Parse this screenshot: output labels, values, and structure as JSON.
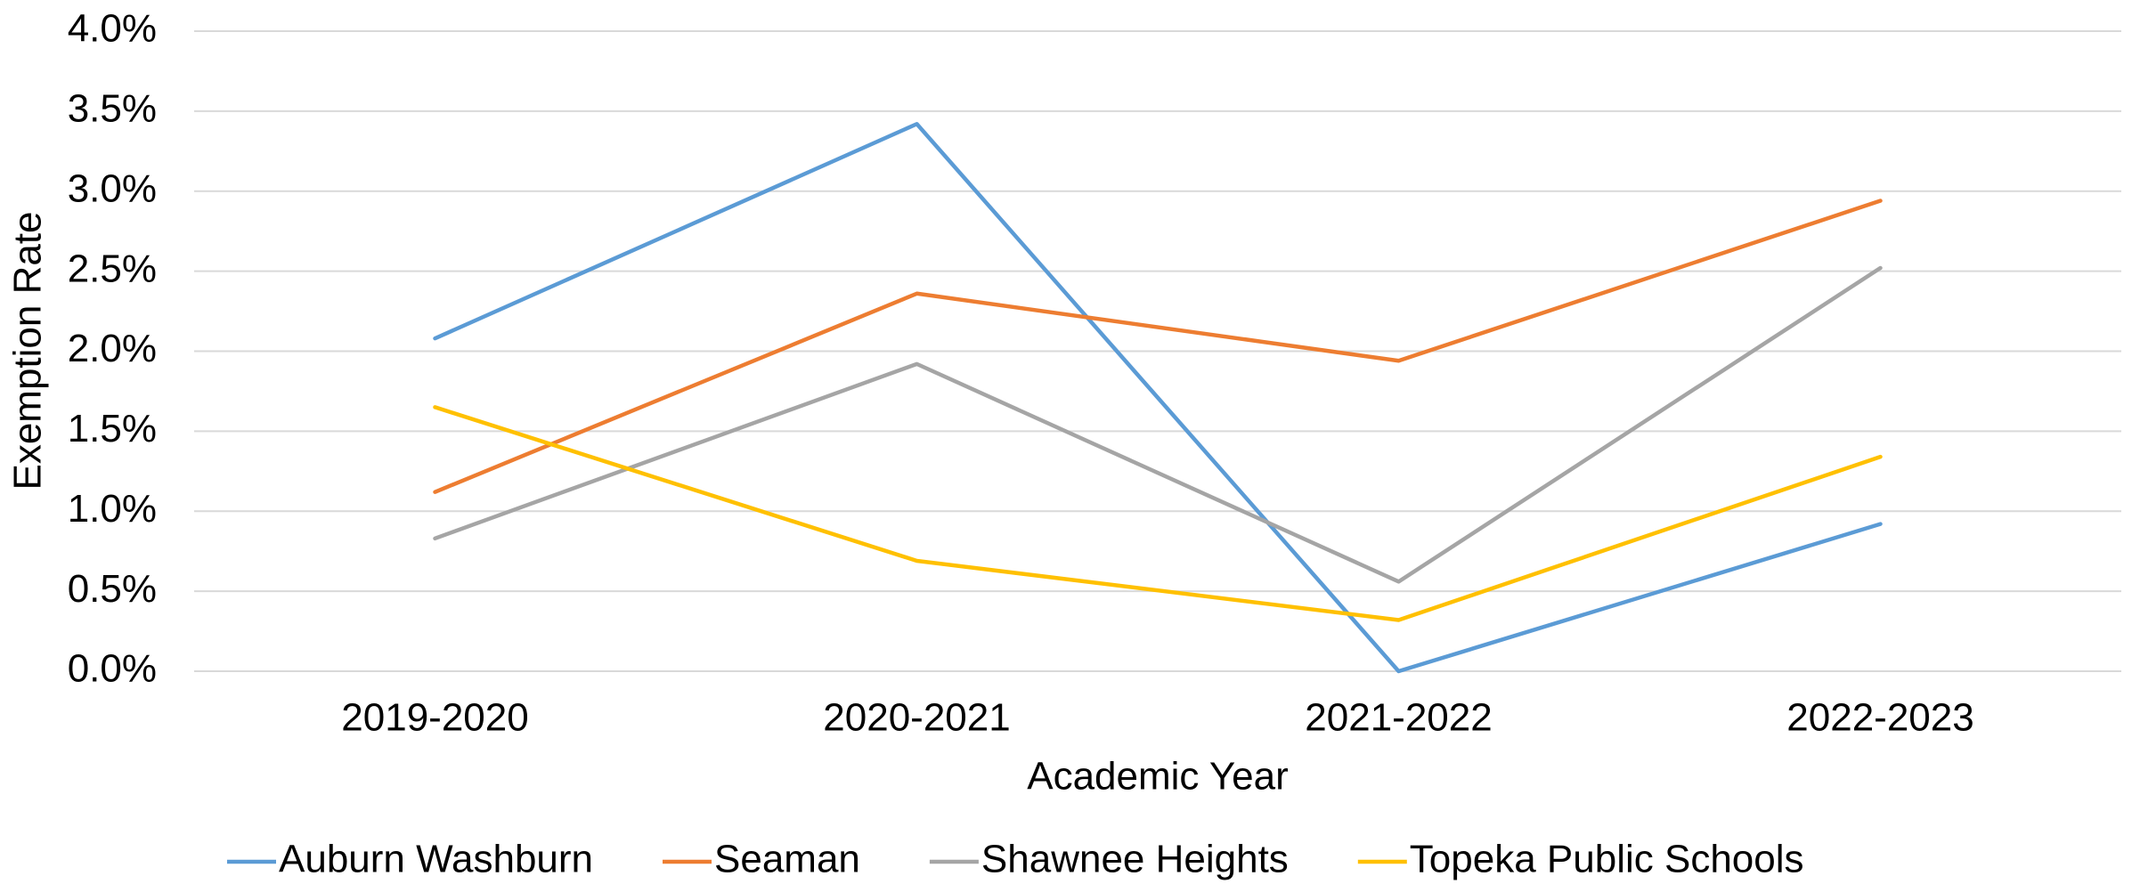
{
  "chart_data": {
    "type": "line",
    "x_label": "Academic Year",
    "y_label": "Exemption Rate",
    "categories": [
      "2019-2020",
      "2020-2021",
      "2021-2022",
      "2022-2023"
    ],
    "series": [
      {
        "name": "Auburn Washburn",
        "color": "#5b9bd5",
        "values": [
          2.08,
          3.42,
          0.0,
          0.92
        ]
      },
      {
        "name": "Seaman",
        "color": "#ed7d31",
        "values": [
          1.12,
          2.36,
          1.94,
          2.94
        ]
      },
      {
        "name": "Shawnee Heights",
        "color": "#a5a5a5",
        "values": [
          0.83,
          1.92,
          0.56,
          2.52
        ]
      },
      {
        "name": "Topeka Public Schools",
        "color": "#ffc000",
        "values": [
          1.65,
          0.69,
          0.32,
          1.34
        ]
      }
    ],
    "ylim": [
      0,
      4
    ],
    "yticks": [
      {
        "value": 0,
        "label": "0.0%"
      },
      {
        "value": 0.5,
        "label": "0.5%"
      },
      {
        "value": 1,
        "label": "1.0%"
      },
      {
        "value": 1.5,
        "label": "1.5%"
      },
      {
        "value": 2,
        "label": "2.0%"
      },
      {
        "value": 2.5,
        "label": "2.5%"
      },
      {
        "value": 3,
        "label": "3.0%"
      },
      {
        "value": 3.5,
        "label": "3.5%"
      },
      {
        "value": 4,
        "label": "4.0%"
      }
    ],
    "grid": true,
    "legend": "bottom"
  }
}
